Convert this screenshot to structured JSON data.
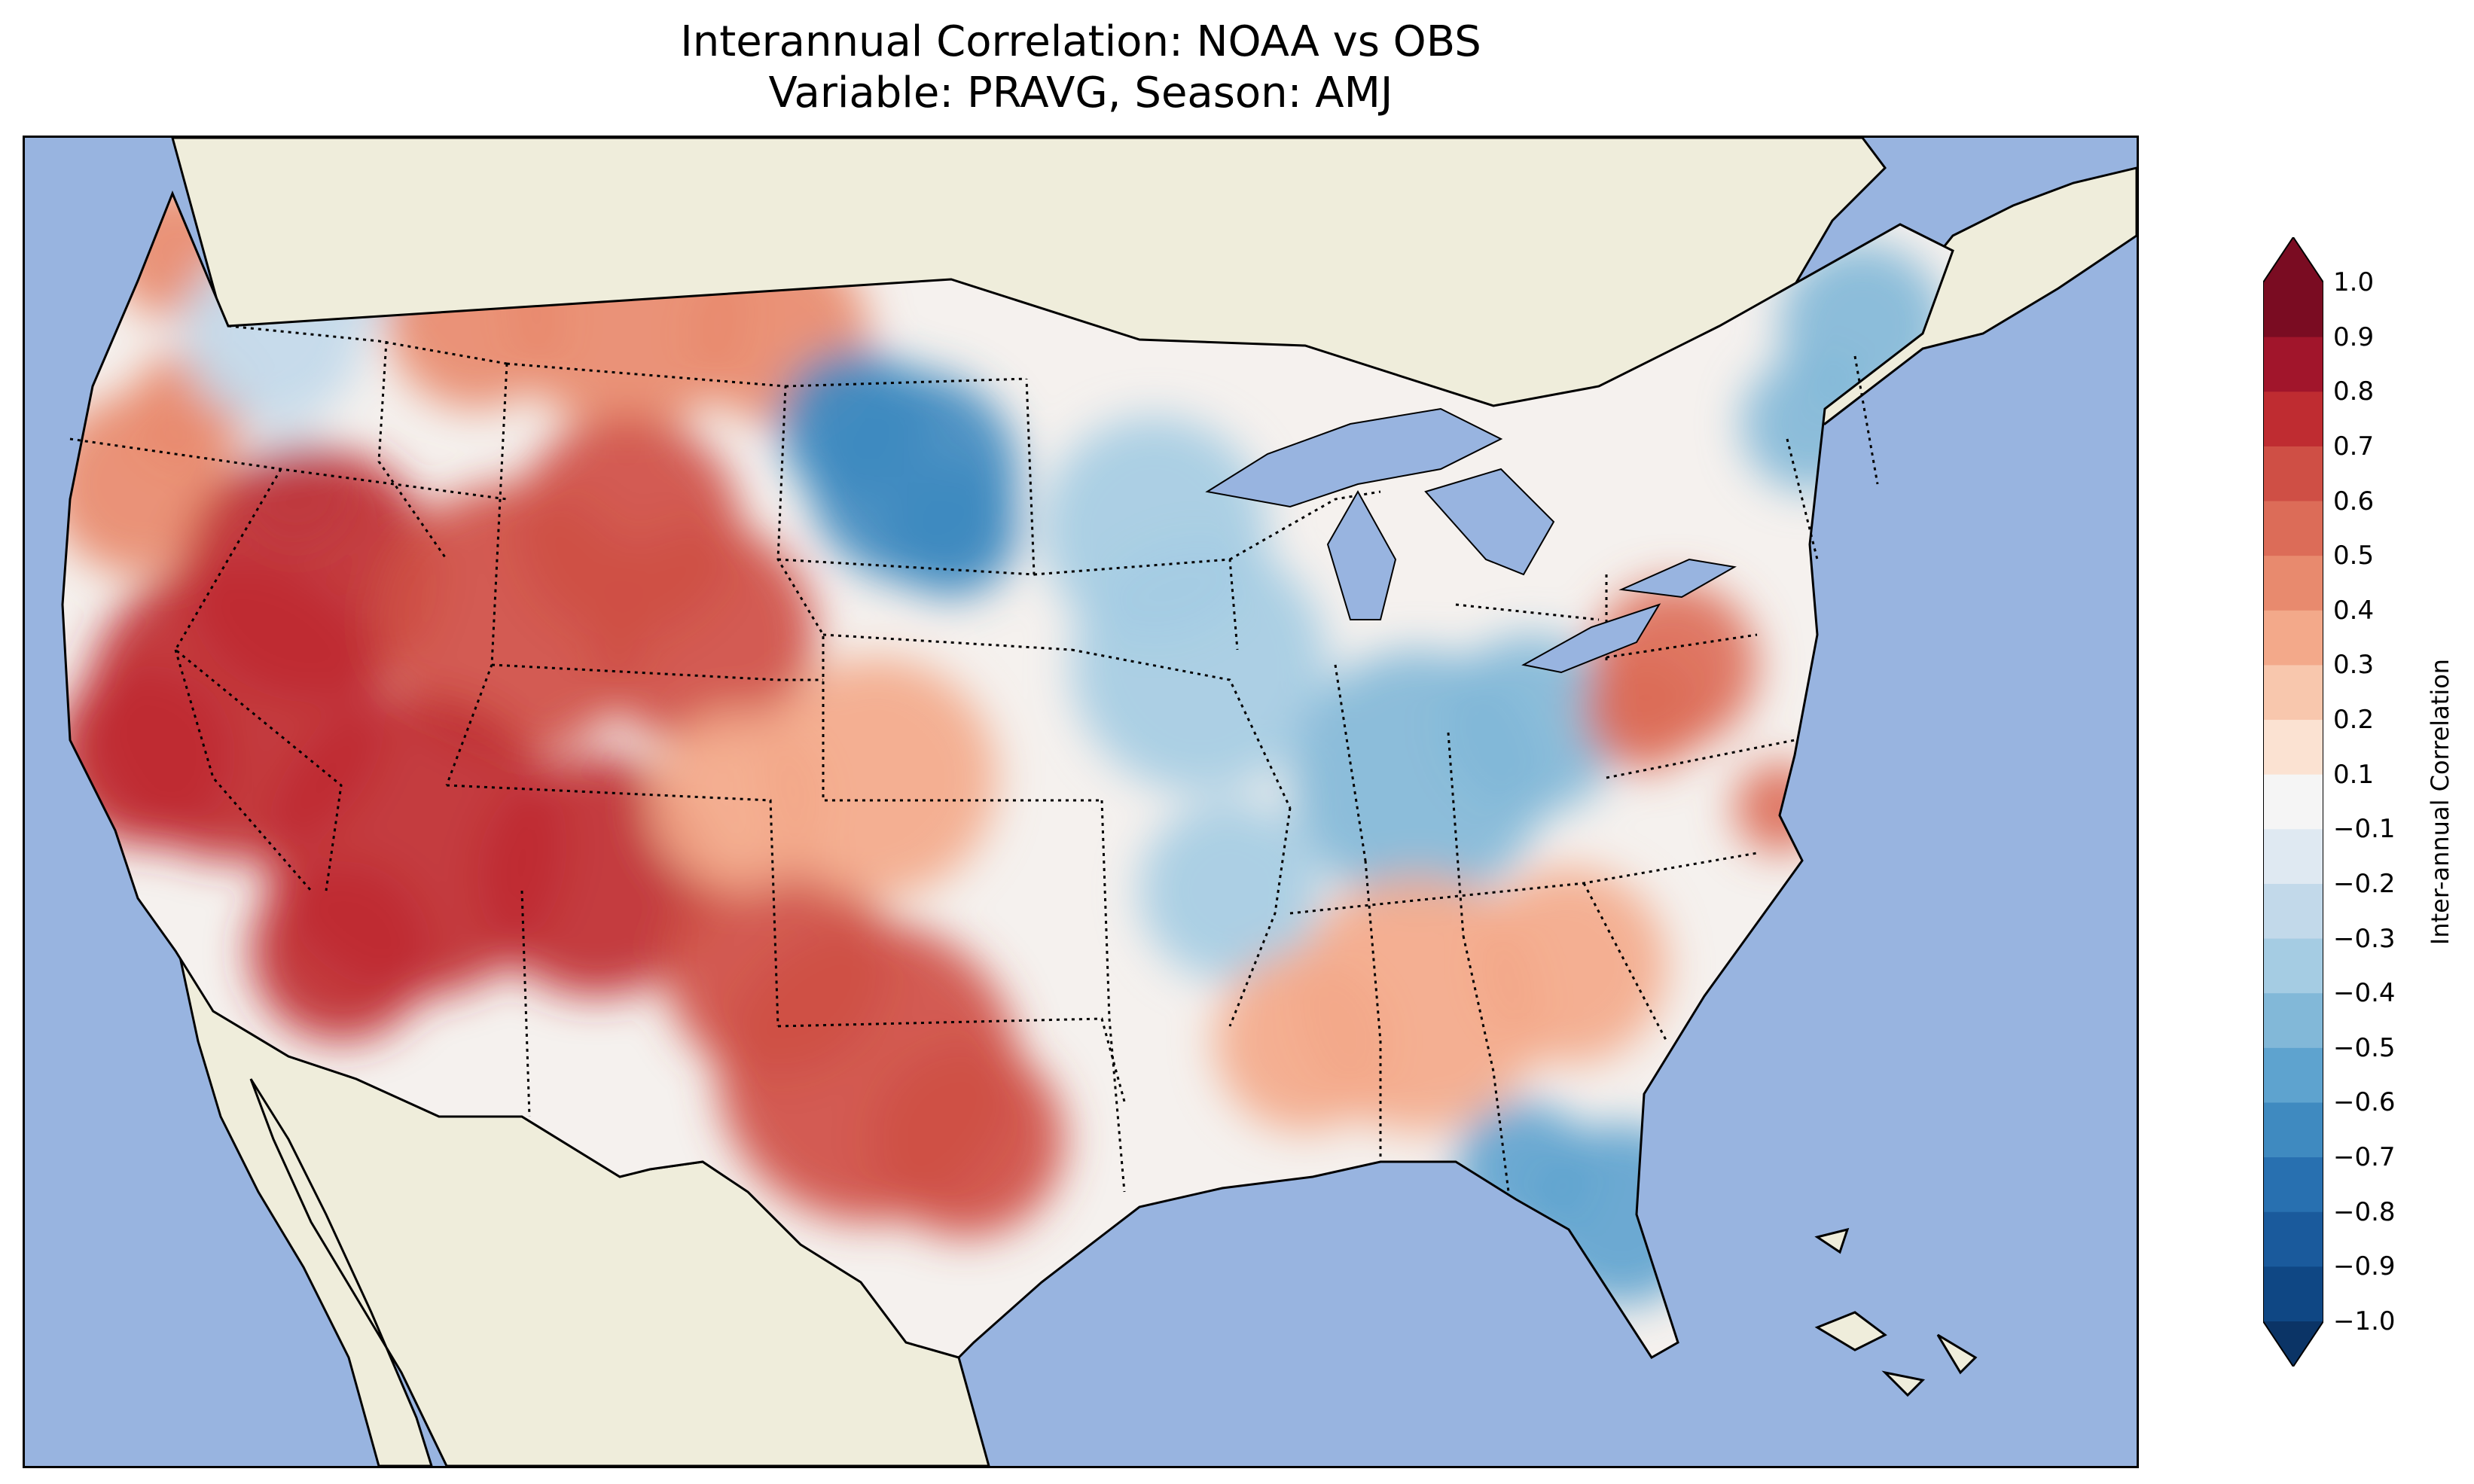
{
  "figure": {
    "title_line1": "Interannual Correlation: NOAA vs OBS",
    "title_line2": "Variable: PRAVG, Season: AMJ"
  },
  "map": {
    "extent": "Contiguous United States",
    "ocean_color": "#98b4e0",
    "land_color": "#efeddb",
    "borders": [
      "coastlines",
      "country borders",
      "state borders (dotted)"
    ]
  },
  "colorbar": {
    "label": "Inter-annual Correlation",
    "extend": "both",
    "cmap": "RdBu_r",
    "ticks": [
      "1.0",
      "0.9",
      "0.8",
      "0.7",
      "0.6",
      "0.5",
      "0.4",
      "0.3",
      "0.2",
      "0.1",
      "−0.1",
      "−0.2",
      "−0.3",
      "−0.4",
      "−0.5",
      "−0.6",
      "−0.7",
      "−0.8",
      "−0.9",
      "−1.0"
    ],
    "colors": [
      "#7a0c22",
      "#a1152b",
      "#bf2c31",
      "#cf4f45",
      "#dc6c58",
      "#e88a6e",
      "#f3a98a",
      "#f8c7ad",
      "#fbe2d2",
      "#f5f5f5",
      "#dfe9f2",
      "#c2d9ea",
      "#a5cce3",
      "#82b8d8",
      "#5ea3cf",
      "#3f8ac0",
      "#2870b0",
      "#1a5a9c",
      "#0f4784",
      "#0b3466"
    ]
  },
  "chart_data": {
    "type": "heatmap",
    "title": "Interannual Correlation: NOAA vs OBS",
    "subtitle": "Variable: PRAVG, Season: AMJ",
    "colorbar_label": "Inter-annual Correlation",
    "value_range": [
      -1.0,
      1.0
    ],
    "levels": [
      -1.0,
      -0.9,
      -0.8,
      -0.7,
      -0.6,
      -0.5,
      -0.4,
      -0.3,
      -0.2,
      -0.1,
      0.1,
      0.2,
      0.3,
      0.4,
      0.5,
      0.6,
      0.7,
      0.8,
      0.9,
      1.0
    ],
    "regions": [
      {
        "region": "Pacific Northwest coast",
        "correlation": 0.5
      },
      {
        "region": "Interior Northwest",
        "correlation": -0.2
      },
      {
        "region": "Montana",
        "correlation": 0.5
      },
      {
        "region": "Nevada / California",
        "correlation": 0.8
      },
      {
        "region": "Utah / Colorado",
        "correlation": 0.7
      },
      {
        "region": "Arizona / New Mexico",
        "correlation": 0.8
      },
      {
        "region": "Texas",
        "correlation": 0.7
      },
      {
        "region": "Northern Plains (Dakotas)",
        "correlation": -0.6
      },
      {
        "region": "Central Plains (Kansas/Nebraska)",
        "correlation": 0.4
      },
      {
        "region": "Midwest",
        "correlation": -0.3
      },
      {
        "region": "Ohio Valley",
        "correlation": -0.4
      },
      {
        "region": "Southeast",
        "correlation": 0.4
      },
      {
        "region": "Florida",
        "correlation": -0.5
      },
      {
        "region": "Mid-Atlantic / Virginia",
        "correlation": 0.6
      },
      {
        "region": "New England",
        "correlation": -0.4
      }
    ]
  }
}
